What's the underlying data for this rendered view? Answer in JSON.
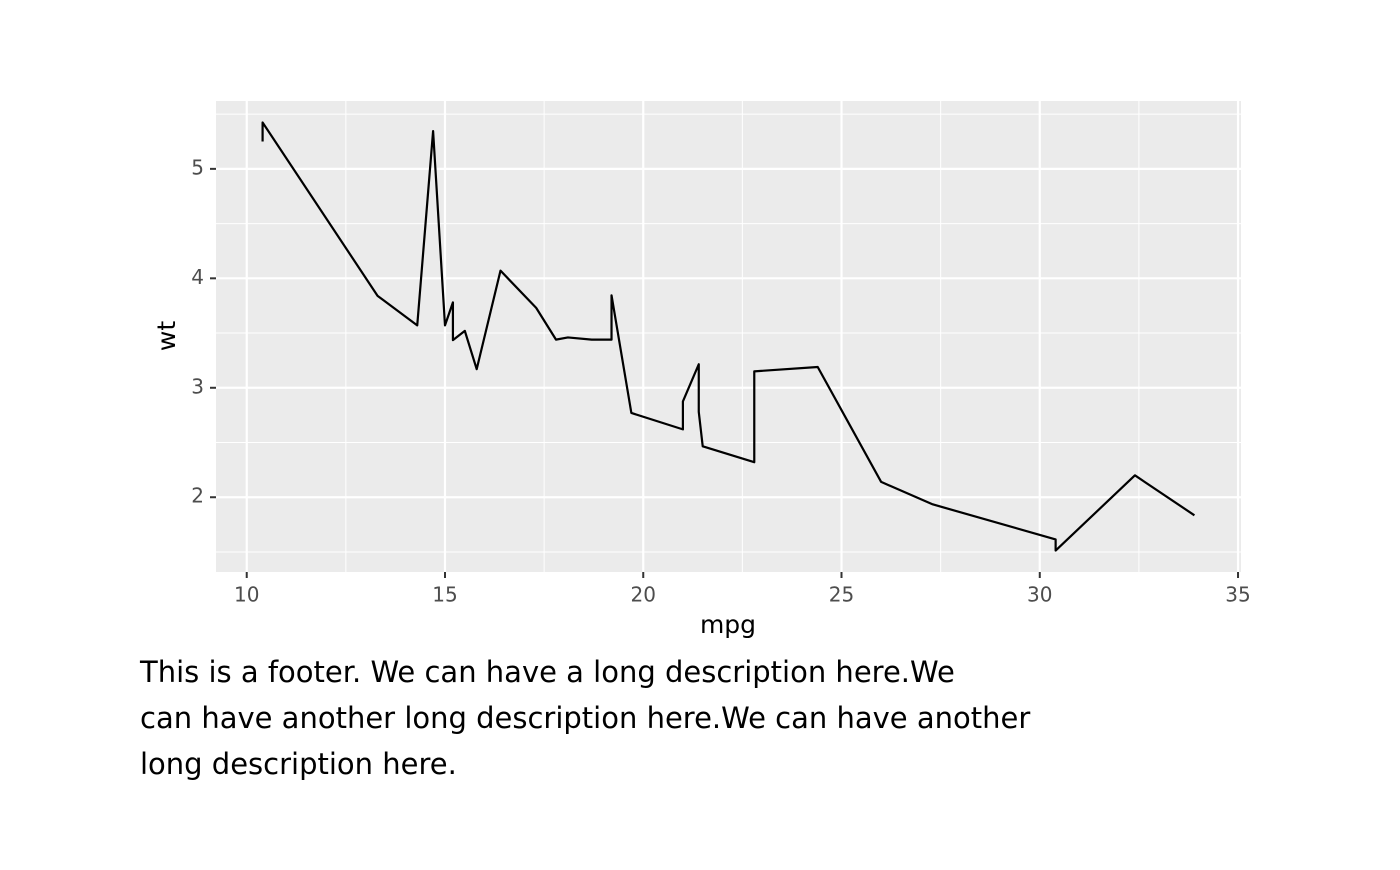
{
  "chart_data": {
    "type": "line",
    "x_label": "mpg",
    "y_label": "wt",
    "x": [
      10.4,
      10.4,
      13.3,
      14.3,
      14.7,
      15.0,
      15.2,
      15.2,
      15.5,
      15.8,
      16.4,
      17.3,
      17.8,
      18.1,
      18.7,
      19.2,
      19.2,
      19.7,
      21.0,
      21.0,
      21.4,
      21.4,
      21.5,
      22.8,
      22.8,
      24.4,
      26.0,
      27.3,
      30.4,
      30.4,
      32.4,
      33.9
    ],
    "series": [
      {
        "name": "wt",
        "color": "#000000",
        "values": [
          5.25,
          5.424,
          3.84,
          3.57,
          5.345,
          3.57,
          3.78,
          3.435,
          3.52,
          3.17,
          4.07,
          3.73,
          3.44,
          3.46,
          3.44,
          3.44,
          3.845,
          2.77,
          2.62,
          2.875,
          3.215,
          2.78,
          2.465,
          2.32,
          3.15,
          3.19,
          2.14,
          1.935,
          1.615,
          1.513,
          2.2,
          1.835
        ]
      }
    ],
    "xlim": [
      9.225,
      35.075
    ],
    "xticks": [
      10,
      15,
      20,
      25,
      30,
      35
    ],
    "ylim": [
      1.317,
      5.62
    ],
    "yticks": [
      2,
      3,
      4,
      5
    ],
    "grid": true,
    "panel_color": "#ebebeb",
    "footer": [
      "This is a footer. We can have a long description here.We",
      "can have another long description here.We can have another",
      "long description here."
    ]
  }
}
